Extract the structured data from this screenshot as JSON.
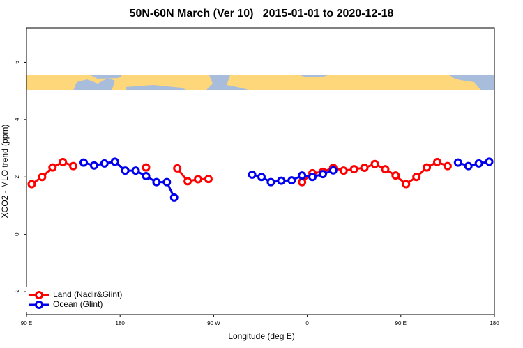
{
  "chart_data": {
    "type": "line",
    "title": "50N-60N March (Ver 10)   2015-01-01 to 2020-12-18",
    "x_label": "Longitude (deg E)",
    "y_label": "XCO2 - MLO trend (ppm)",
    "xlim": [
      90,
      540
    ],
    "xticks": [
      {
        "value": 90,
        "label": "90 E"
      },
      {
        "value": 180,
        "label": "180"
      },
      {
        "value": 270,
        "label": "90 W"
      },
      {
        "value": 360,
        "label": "0"
      },
      {
        "value": 450,
        "label": "90 E"
      },
      {
        "value": 540,
        "label": "180"
      }
    ],
    "ylim": [
      -2.8,
      7.2
    ],
    "yticks": [
      -2,
      0,
      2,
      4,
      6
    ],
    "legend": "bottom-left",
    "series": [
      {
        "name": "Land (Nadir&Glint)",
        "color": "#ff0000",
        "x": [
          95,
          105,
          115,
          125,
          135,
          null,
          205,
          null,
          235,
          245,
          255,
          265,
          null,
          355,
          365,
          375,
          385,
          395,
          405,
          415,
          425,
          435,
          445,
          455,
          465,
          475,
          485,
          495
        ],
        "values": [
          1.75,
          2.0,
          2.33,
          2.52,
          2.38,
          null,
          2.33,
          null,
          2.3,
          1.85,
          1.92,
          1.93,
          null,
          1.82,
          2.13,
          2.18,
          2.32,
          2.22,
          2.27,
          2.32,
          2.45,
          2.27,
          2.05,
          1.75,
          2.0,
          2.33,
          2.52,
          2.38
        ]
      },
      {
        "name": "Ocean (Glint)",
        "color": "#0000ee",
        "x": [
          145,
          155,
          165,
          175,
          185,
          195,
          205,
          215,
          225,
          232,
          null,
          307,
          316,
          325,
          335,
          345,
          355,
          365,
          375,
          385,
          null,
          505,
          515,
          525,
          535
        ],
        "values": [
          2.5,
          2.4,
          2.47,
          2.53,
          2.22,
          2.22,
          2.03,
          1.82,
          1.82,
          1.28,
          null,
          2.08,
          2.0,
          1.82,
          1.87,
          1.88,
          2.05,
          2.0,
          2.1,
          2.23,
          null,
          2.5,
          2.38,
          2.47,
          2.53
        ]
      }
    ]
  }
}
